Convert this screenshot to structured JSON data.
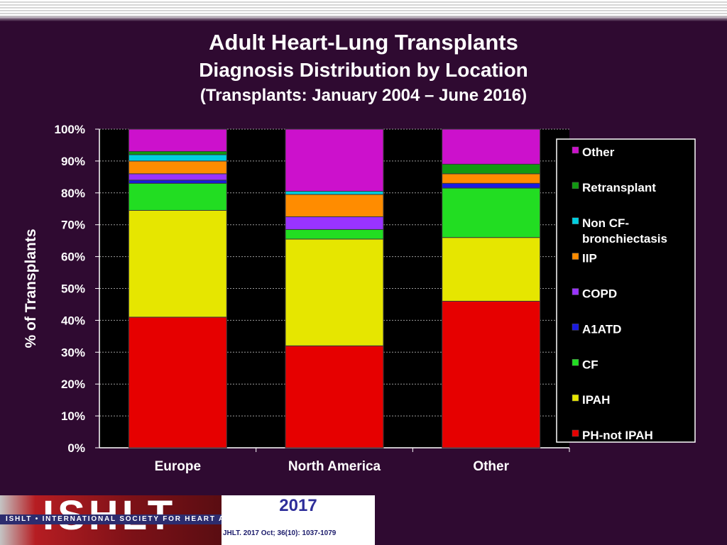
{
  "title": {
    "line1": "Adult Heart-Lung Transplants",
    "line2": "Diagnosis Distribution by Location",
    "line3": "(Transplants: January 2004 – June 2016)"
  },
  "chart_data": {
    "type": "bar",
    "stacked": true,
    "categories": [
      "Europe",
      "North America",
      "Other"
    ],
    "ylabel": "% of Transplants",
    "ylim": [
      0,
      100
    ],
    "yticks": [
      "0%",
      "10%",
      "20%",
      "30%",
      "40%",
      "50%",
      "60%",
      "70%",
      "80%",
      "90%",
      "100%"
    ],
    "grid": true,
    "legend_position": "right",
    "series": [
      {
        "name": "PH-not IPAH",
        "color": "#e60000",
        "values": [
          41,
          32,
          46
        ]
      },
      {
        "name": "IPAH",
        "color": "#e6e600",
        "values": [
          33.5,
          33.5,
          20
        ]
      },
      {
        "name": "CF",
        "color": "#22dd22",
        "values": [
          8.5,
          3,
          15.5
        ]
      },
      {
        "name": "A1ATD",
        "color": "#1a1ae0",
        "values": [
          1,
          0,
          1.5
        ]
      },
      {
        "name": "COPD",
        "color": "#9933ff",
        "values": [
          2,
          4,
          0
        ]
      },
      {
        "name": "IIP",
        "color": "#ff8c00",
        "values": [
          4,
          7,
          3
        ]
      },
      {
        "name": "Non CF-bronchiectasis",
        "color": "#00cfe0",
        "values": [
          2,
          1,
          0
        ]
      },
      {
        "name": "Retransplant",
        "color": "#119911",
        "values": [
          1,
          0,
          3
        ]
      },
      {
        "name": "Other",
        "color": "#cc11cc",
        "values": [
          7,
          19.5,
          11
        ]
      }
    ]
  },
  "legend": [
    {
      "text": "Other",
      "color": "#cc11cc"
    },
    {
      "text": "Retransplant",
      "color": "#119911"
    },
    {
      "text": "Non CF-bronchiectasis",
      "line1": "Non CF-",
      "line2": "bronchiectasis",
      "color": "#00cfe0"
    },
    {
      "text": "IIP",
      "color": "#ff8c00"
    },
    {
      "text": "COPD",
      "color": "#9933ff"
    },
    {
      "text": "A1ATD",
      "color": "#1a1ae0"
    },
    {
      "text": "CF",
      "color": "#22dd22"
    },
    {
      "text": "IPAH",
      "color": "#e6e600"
    },
    {
      "text": "PH-not IPAH",
      "color": "#e60000"
    }
  ],
  "footer": {
    "logo": "ISHLT",
    "band": "ISHLT • INTERNATIONAL SOCIETY FOR HEART AND LUNG TRANSPLANTATION",
    "year": "2017",
    "citation": "JHLT. 2017 Oct; 36(10): 1037-1079"
  },
  "colors": {
    "background": "#2f0a31",
    "plot_area": "#000000",
    "text": "#ffffff"
  }
}
